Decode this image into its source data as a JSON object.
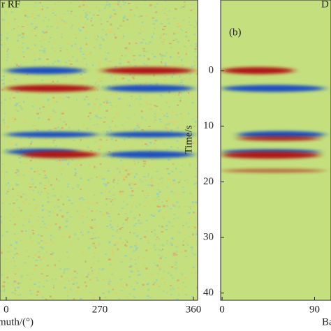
{
  "chart_data": [
    {
      "type": "heatmap",
      "title": "r RF",
      "xlabel": "muth/(°)",
      "xlim": [
        174,
        364
      ],
      "ylim": [
        -12.7,
        41.3
      ],
      "xticks": [
        {
          "value": 180,
          "label": "0"
        },
        270,
        360
      ],
      "noise": true,
      "background": "#c4e07e",
      "positive_color": "#b01818",
      "negative_color": "#1a4fc0",
      "events": [
        {
          "time": 0,
          "amplitude": -1,
          "xrange": [
            180,
            255
          ]
        },
        {
          "time": 0,
          "amplitude": 1,
          "xrange": [
            272,
            360
          ]
        },
        {
          "time": 3.2,
          "amplitude": 1,
          "xrange": [
            180,
            265
          ]
        },
        {
          "time": 3.2,
          "amplitude": -1,
          "xrange": [
            275,
            360
          ]
        },
        {
          "time": 11.5,
          "amplitude": -0.7,
          "xrange": [
            180,
            268
          ]
        },
        {
          "time": 11.5,
          "amplitude": -0.7,
          "xrange": [
            276,
            360
          ]
        },
        {
          "time": 14.6,
          "amplitude": -0.8,
          "xrange": [
            180,
            250
          ]
        },
        {
          "time": 15.1,
          "amplitude": 1,
          "xrange": [
            195,
            268
          ]
        },
        {
          "time": 15.1,
          "amplitude": -1,
          "xrange": [
            276,
            360
          ]
        }
      ]
    },
    {
      "type": "heatmap",
      "title": "D",
      "xlabel": "Ba",
      "ylabel": "Time/s",
      "annotation": "(b)",
      "xlim": [
        -1.4,
        106
      ],
      "ylim": [
        -12.7,
        41.3
      ],
      "xticks": [
        0,
        90
      ],
      "yticks": [
        0,
        10,
        20,
        30,
        40
      ],
      "noise": false,
      "background": "#c4e07e",
      "positive_color": "#b01818",
      "negative_color": "#1a4fc0",
      "events": [
        {
          "time": 0,
          "amplitude": 1,
          "xrange": [
            0,
            70
          ]
        },
        {
          "time": 3.2,
          "amplitude": -1,
          "xrange": [
            0,
            100
          ]
        },
        {
          "time": 11.5,
          "amplitude": -1,
          "xrange": [
            15,
            100
          ]
        },
        {
          "time": 12.2,
          "amplitude": 0.5,
          "xrange": [
            15,
            95
          ]
        },
        {
          "time": 14.6,
          "amplitude": -0.6,
          "xrange": [
            0,
            95
          ]
        },
        {
          "time": 15.2,
          "amplitude": 1,
          "xrange": [
            0,
            95
          ]
        },
        {
          "time": 18,
          "amplitude": 0.25,
          "xrange": [
            0,
            100
          ]
        }
      ]
    }
  ]
}
